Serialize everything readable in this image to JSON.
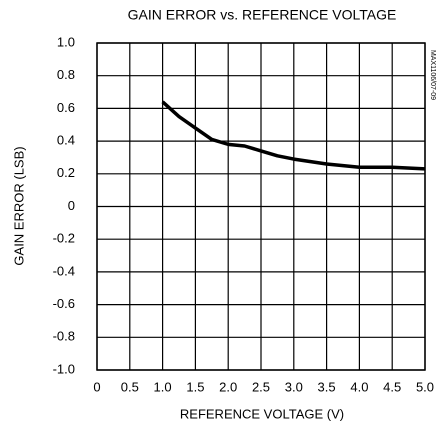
{
  "chart_data": {
    "type": "line",
    "title": "GAIN ERROR vs. REFERENCE VOLTAGE",
    "xlabel": "REFERENCE VOLTAGE (V)",
    "ylabel": "GAIN ERROR (LSB)",
    "annotation": "MAX1106/07-09",
    "x": [
      1.0,
      1.25,
      1.5,
      1.75,
      2.0,
      2.25,
      2.5,
      2.75,
      3.0,
      3.5,
      4.0,
      4.5,
      5.0
    ],
    "series": [
      {
        "color": "#000000",
        "values": [
          0.64,
          0.55,
          0.48,
          0.41,
          0.38,
          0.37,
          0.34,
          0.31,
          0.29,
          0.26,
          0.24,
          0.24,
          0.23
        ]
      }
    ],
    "xlim": [
      0,
      5
    ],
    "xticks": [
      0,
      0.5,
      {
        "value": 1,
        "label": "1.0"
      },
      1.5,
      {
        "value": 2,
        "label": "2.0"
      },
      2.5,
      {
        "value": 3,
        "label": "3.0"
      },
      3.5,
      {
        "value": 4,
        "label": "4.0"
      },
      4.5,
      {
        "value": 5,
        "label": "5.0"
      }
    ],
    "ylim": [
      -1,
      1
    ],
    "yticks": [
      {
        "value": -1,
        "label": "-1.0"
      },
      -0.8,
      -0.6,
      -0.4,
      -0.2,
      0,
      0.2,
      0.4,
      0.6,
      0.8,
      {
        "value": 1,
        "label": "1.0"
      }
    ],
    "grid": true
  }
}
